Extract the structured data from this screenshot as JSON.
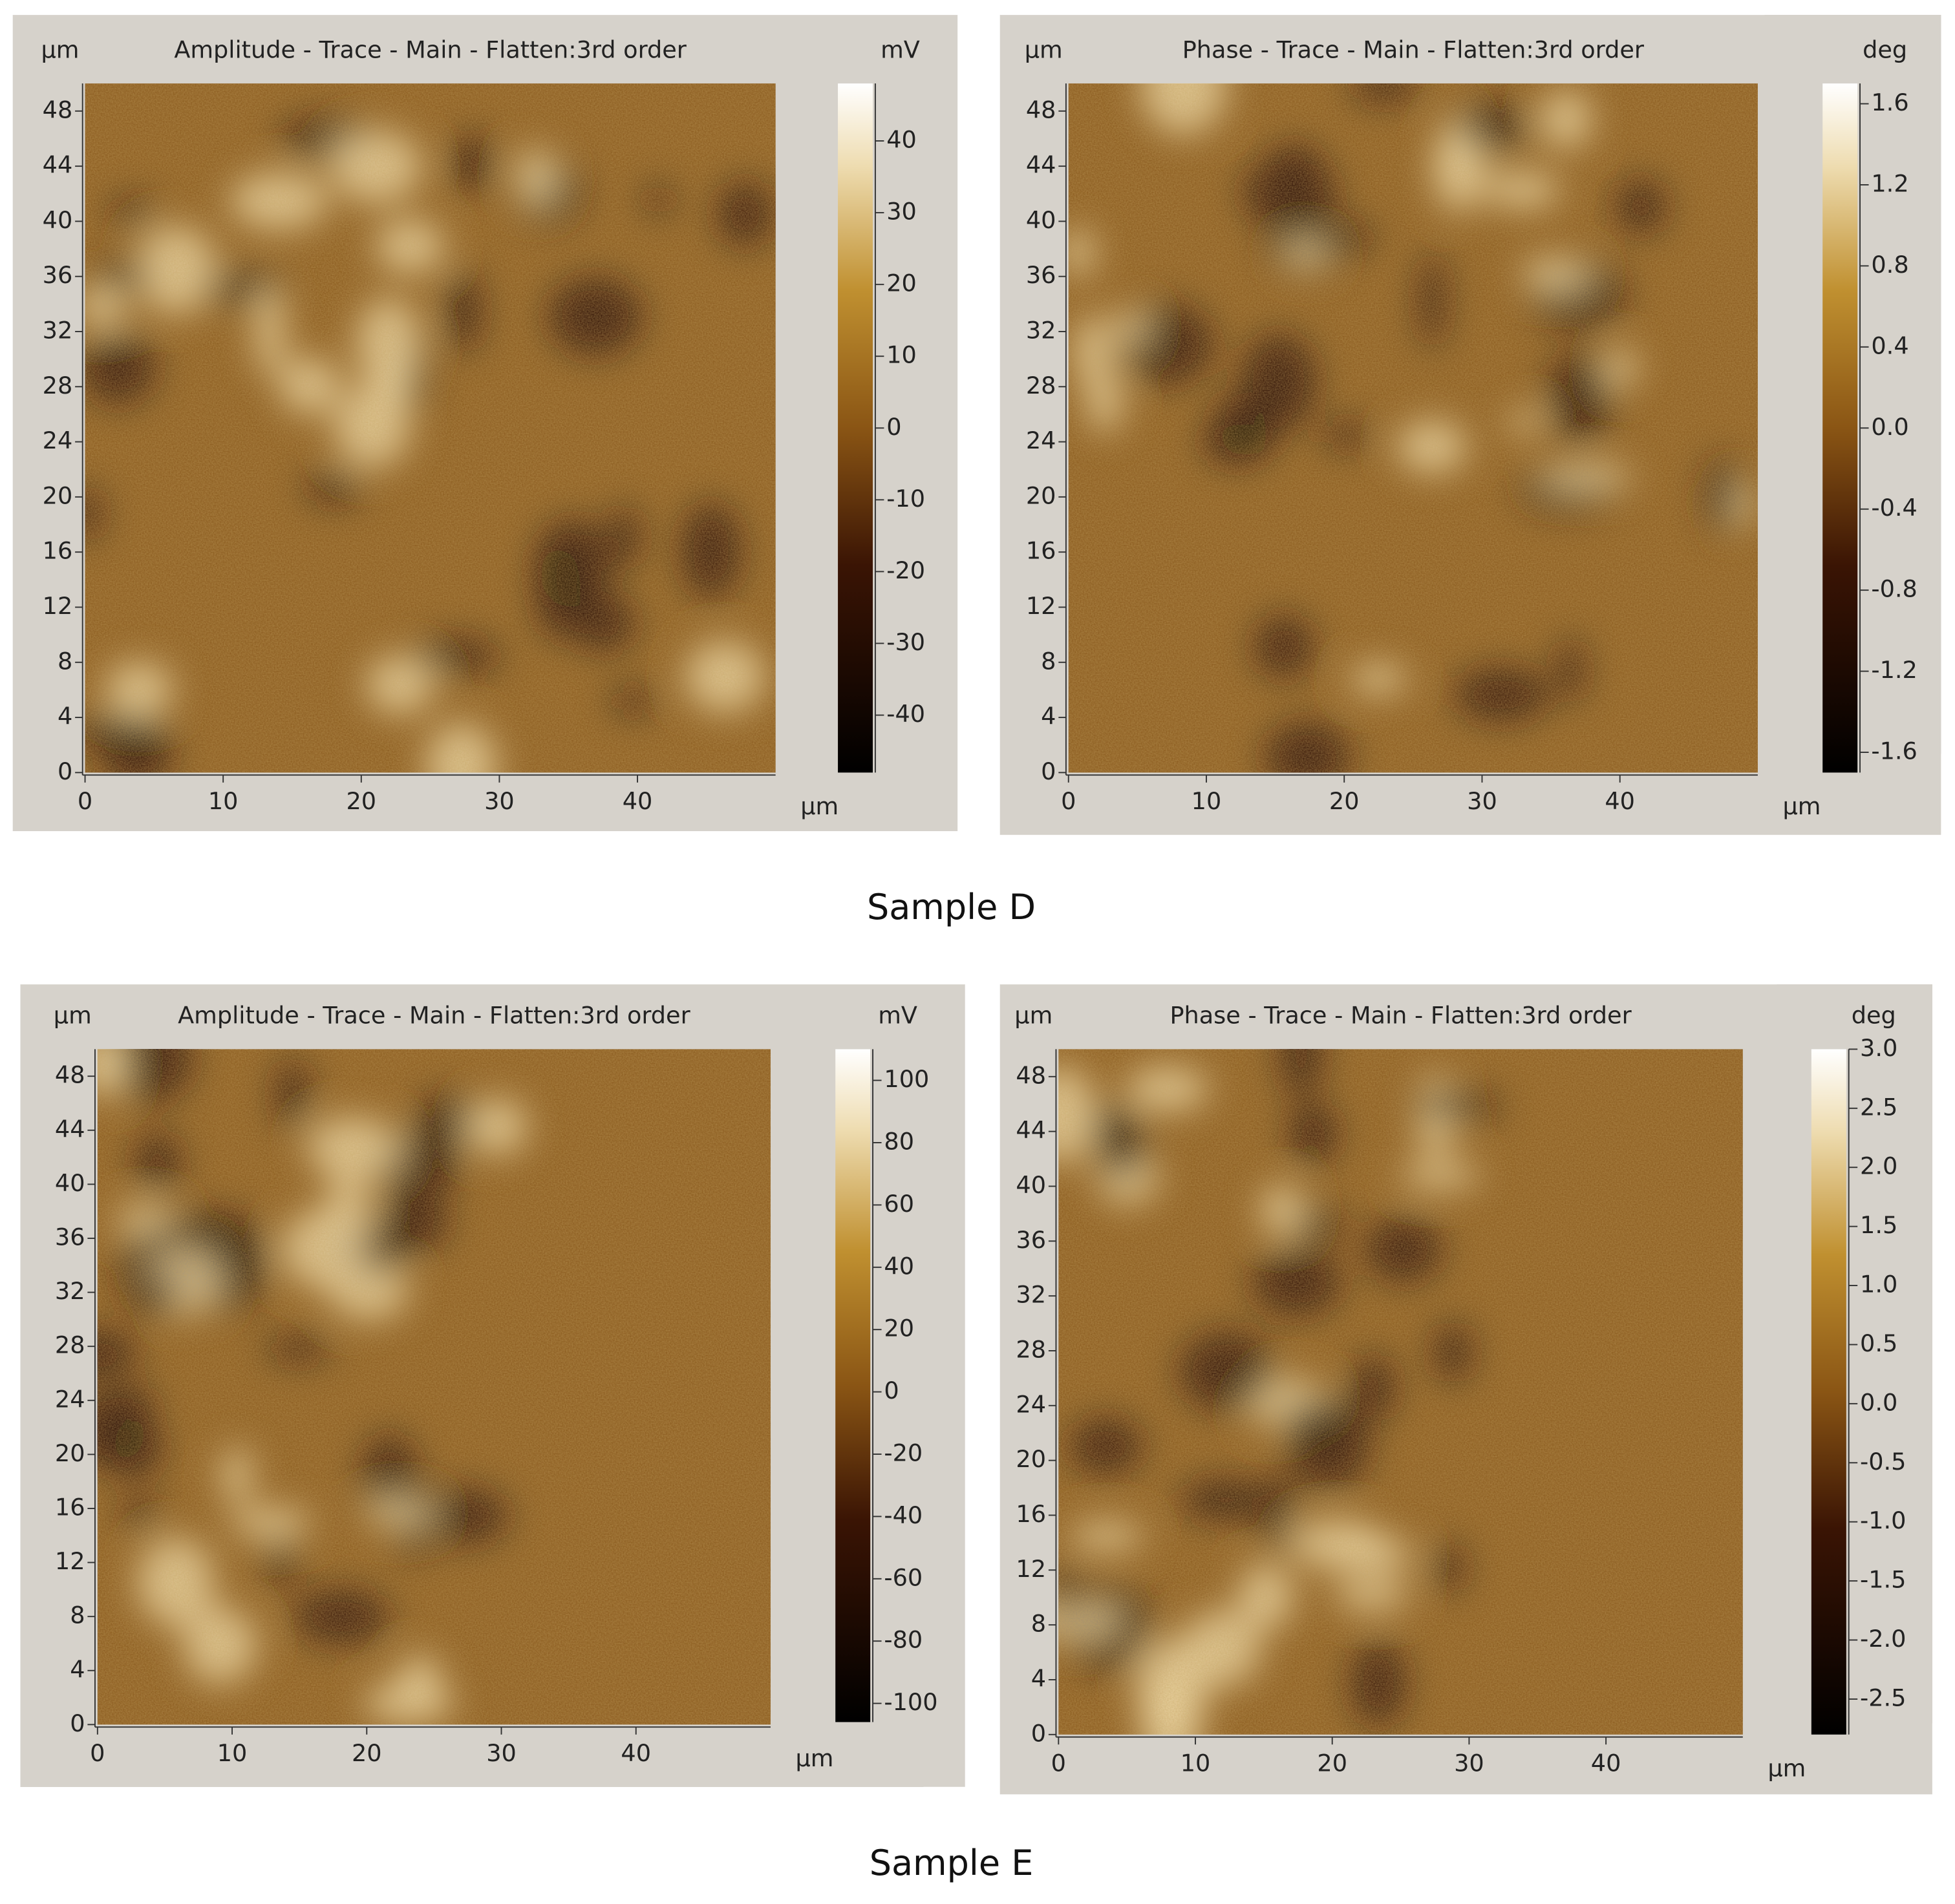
{
  "chart_data": [
    {
      "type": "heatmap",
      "title": "Amplitude  -  Trace  -  Main  -  Flatten:3rd order",
      "y_label": "μm",
      "x_label": "μm",
      "colorbar_label": "mV",
      "xlim": [
        0,
        50
      ],
      "xticks": [
        0,
        10,
        20,
        30,
        40
      ],
      "ylim": [
        0,
        50
      ],
      "yticks": [
        0,
        4,
        8,
        12,
        16,
        20,
        24,
        28,
        32,
        36,
        40,
        44,
        48
      ],
      "clim": [
        -48,
        48
      ],
      "cticks": [
        -40,
        -30,
        -20,
        -10,
        0,
        10,
        20,
        30,
        40
      ]
    },
    {
      "type": "heatmap",
      "title": "Phase  -  Trace  -  Main  -  Flatten:3rd order",
      "y_label": "μm",
      "x_label": "μm",
      "colorbar_label": "deg",
      "xlim": [
        0,
        50
      ],
      "xticks": [
        0,
        10,
        20,
        30,
        40
      ],
      "ylim": [
        0,
        50
      ],
      "yticks": [
        0,
        4,
        8,
        12,
        16,
        20,
        24,
        28,
        32,
        36,
        40,
        44,
        48
      ],
      "clim": [
        -1.7,
        1.7
      ],
      "cticks": [
        -1.6,
        -1.2,
        -0.8,
        -0.4,
        {
          "value": 0,
          "label": "0.0"
        },
        0.4,
        0.8,
        1.2,
        1.6
      ]
    },
    {
      "type": "heatmap",
      "title": "Amplitude  -  Trace  -  Main  -  Flatten:3rd order",
      "y_label": "μm",
      "x_label": "μm",
      "colorbar_label": "mV",
      "xlim": [
        0,
        50
      ],
      "xticks": [
        0,
        10,
        20,
        30,
        40
      ],
      "ylim": [
        0,
        50
      ],
      "yticks": [
        0,
        4,
        8,
        12,
        16,
        20,
        24,
        28,
        32,
        36,
        40,
        44,
        48
      ],
      "clim": [
        -106,
        110
      ],
      "cticks": [
        -100,
        -80,
        -60,
        -40,
        -20,
        0,
        20,
        40,
        60,
        80,
        100
      ]
    },
    {
      "type": "heatmap",
      "title": "Phase  -  Trace  -  Main  -  Flatten:3rd order",
      "y_label": "μm",
      "x_label": "μm",
      "colorbar_label": "deg",
      "xlim": [
        0,
        50
      ],
      "xticks": [
        0,
        10,
        20,
        30,
        40
      ],
      "ylim": [
        0,
        50
      ],
      "yticks": [
        0,
        4,
        8,
        12,
        16,
        20,
        24,
        28,
        32,
        36,
        40,
        44,
        48
      ],
      "clim": [
        -2.8,
        3.0
      ],
      "cticks": [
        -2.5,
        {
          "value": -2,
          "label": "-2.0"
        },
        -1.5,
        {
          "value": -1,
          "label": "-1.0"
        },
        -0.5,
        {
          "value": 0,
          "label": "0.0"
        },
        0.5,
        {
          "value": 1,
          "label": "1.0"
        },
        1.5,
        {
          "value": 2,
          "label": "2.0"
        },
        2.5,
        {
          "value": 3,
          "label": "3.0"
        }
      ]
    }
  ],
  "captions": [
    "Sample D",
    "Sample E"
  ]
}
